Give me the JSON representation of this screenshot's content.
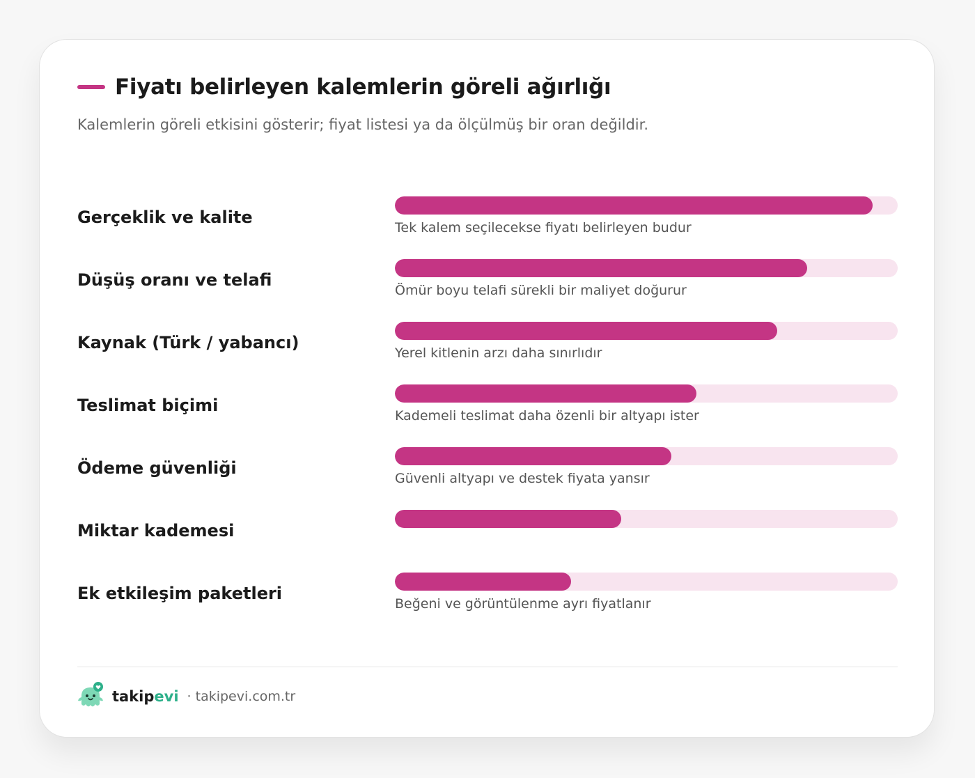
{
  "header": {
    "title": "Fiyatı belirleyen kalemlerin göreli ağırlığı",
    "subtitle": "Kalemlerin göreli etkisini gösterir; fiyat listesi ya da ölçülmüş bir oran değildir."
  },
  "colors": {
    "accent": "#c43584",
    "track": "#f8e4ef",
    "brand_green": "#2db08a"
  },
  "chart_data": {
    "type": "bar",
    "orientation": "horizontal",
    "title": "Fiyatı belirleyen kalemlerin göreli ağırlığı",
    "subtitle": "Kalemlerin göreli etkisini gösterir; fiyat listesi ya da ölçülmüş bir oran değildir.",
    "xlim": [
      0,
      100
    ],
    "grid": false,
    "categories": [
      "Gerçeklik ve kalite",
      "Düşüş oranı ve telafi",
      "Kaynak (Türk / yabancı)",
      "Teslimat biçimi",
      "Ödeme güvenliği",
      "Miktar kademesi",
      "Ek etkileşim paketleri"
    ],
    "values": [
      95,
      82,
      76,
      60,
      55,
      45,
      35
    ],
    "notes": [
      "Tek kalem seçilecekse fiyatı belirleyen budur",
      "Ömür boyu telafi sürekli bir maliyet doğurur",
      "Yerel kitlenin arzı daha sınırlıdır",
      "Kademeli teslimat daha özenli bir altyapı ister",
      "Güvenli altyapı ve destek fiyata yansır",
      "",
      "Beğeni ve görüntülenme ayrı fiyatlanır"
    ]
  },
  "footer": {
    "brand_prefix": "takip",
    "brand_suffix": "evi",
    "site": "· takipevi.com.tr",
    "logo_icon": "mascot-logo-icon"
  }
}
